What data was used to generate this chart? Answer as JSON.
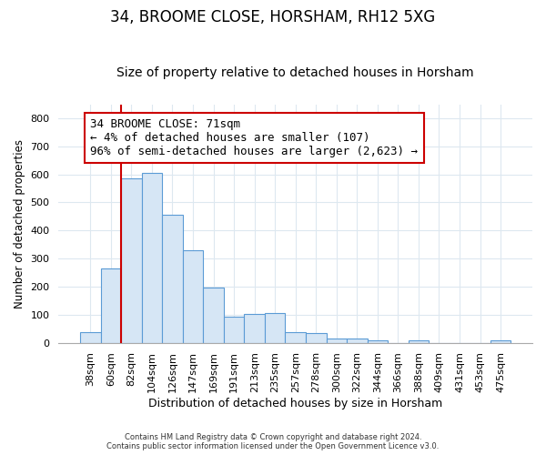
{
  "title1": "34, BROOME CLOSE, HORSHAM, RH12 5XG",
  "title2": "Size of property relative to detached houses in Horsham",
  "xlabel": "Distribution of detached houses by size in Horsham",
  "ylabel": "Number of detached properties",
  "categories": [
    "38sqm",
    "60sqm",
    "82sqm",
    "104sqm",
    "126sqm",
    "147sqm",
    "169sqm",
    "191sqm",
    "213sqm",
    "235sqm",
    "257sqm",
    "278sqm",
    "300sqm",
    "322sqm",
    "344sqm",
    "366sqm",
    "388sqm",
    "409sqm",
    "431sqm",
    "453sqm",
    "475sqm"
  ],
  "values": [
    38,
    265,
    585,
    605,
    455,
    330,
    195,
    92,
    103,
    105,
    38,
    33,
    16,
    15,
    10,
    0,
    8,
    0,
    0,
    0,
    8
  ],
  "bar_color": "#d6e6f5",
  "bar_edge_color": "#5b9bd5",
  "property_line_x": 1.5,
  "annotation_text": "34 BROOME CLOSE: 71sqm\n← 4% of detached houses are smaller (107)\n96% of semi-detached houses are larger (2,623) →",
  "annotation_box_color": "#ffffff",
  "annotation_box_edge_color": "#cc0000",
  "property_line_color": "#cc0000",
  "ylim": [
    0,
    850
  ],
  "yticks": [
    0,
    100,
    200,
    300,
    400,
    500,
    600,
    700,
    800
  ],
  "footer1": "Contains HM Land Registry data © Crown copyright and database right 2024.",
  "footer2": "Contains public sector information licensed under the Open Government Licence v3.0.",
  "background_color": "#ffffff",
  "grid_color": "#dde8f0",
  "title1_fontsize": 12,
  "title2_fontsize": 10,
  "annotation_fontsize": 9
}
